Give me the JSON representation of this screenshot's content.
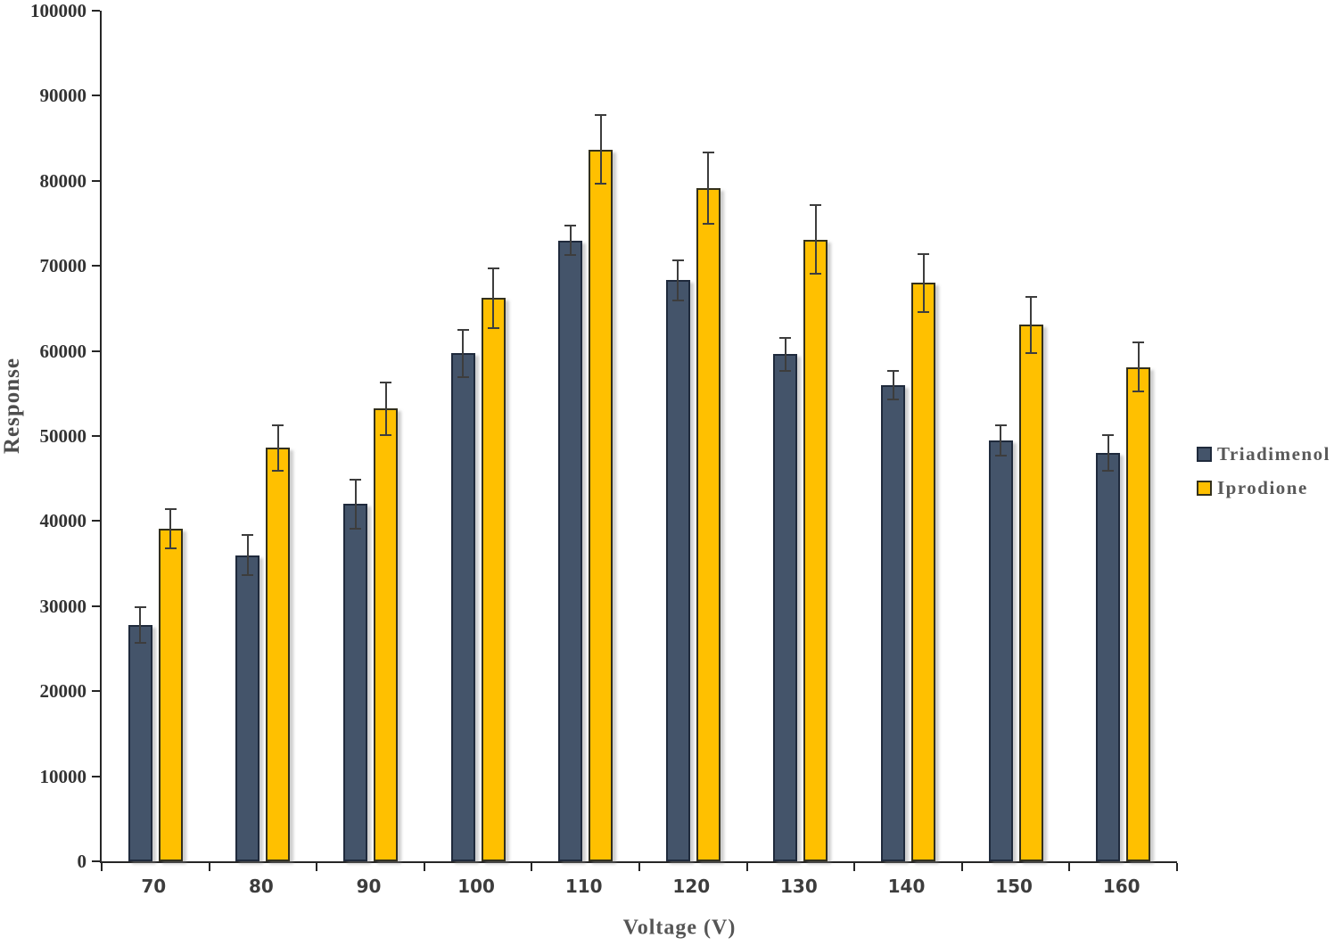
{
  "chart_data": {
    "type": "bar",
    "title": "",
    "xlabel": "Voltage (V)",
    "ylabel": "Response",
    "categories": [
      "70",
      "80",
      "90",
      "100",
      "110",
      "120",
      "130",
      "140",
      "150",
      "160"
    ],
    "series": [
      {
        "name": "Triadimenol",
        "color": "#44546A",
        "border_color": "#1F2A3C",
        "values": [
          27800,
          36000,
          42000,
          59700,
          73000,
          68300,
          59600,
          56000,
          49500,
          48000
        ],
        "errors": [
          2100,
          2400,
          2900,
          2800,
          1750,
          2400,
          1950,
          1700,
          1800,
          2100
        ]
      },
      {
        "name": "Iprodione",
        "color": "#FFC000",
        "border_color": "#33301C",
        "values": [
          39100,
          48600,
          53200,
          66200,
          83700,
          79100,
          73100,
          68000,
          63100,
          58100
        ],
        "errors": [
          2300,
          2700,
          3100,
          3500,
          4000,
          4200,
          4000,
          3400,
          3300,
          2900
        ]
      }
    ],
    "ylim": [
      0,
      100000
    ],
    "ytick_step": 10000,
    "ytick_labels": [
      "0",
      "10000",
      "20000",
      "30000",
      "40000",
      "50000",
      "60000",
      "70000",
      "80000",
      "90000",
      "100000"
    ],
    "grid": false,
    "error_bars": true,
    "legend_position": "right"
  }
}
